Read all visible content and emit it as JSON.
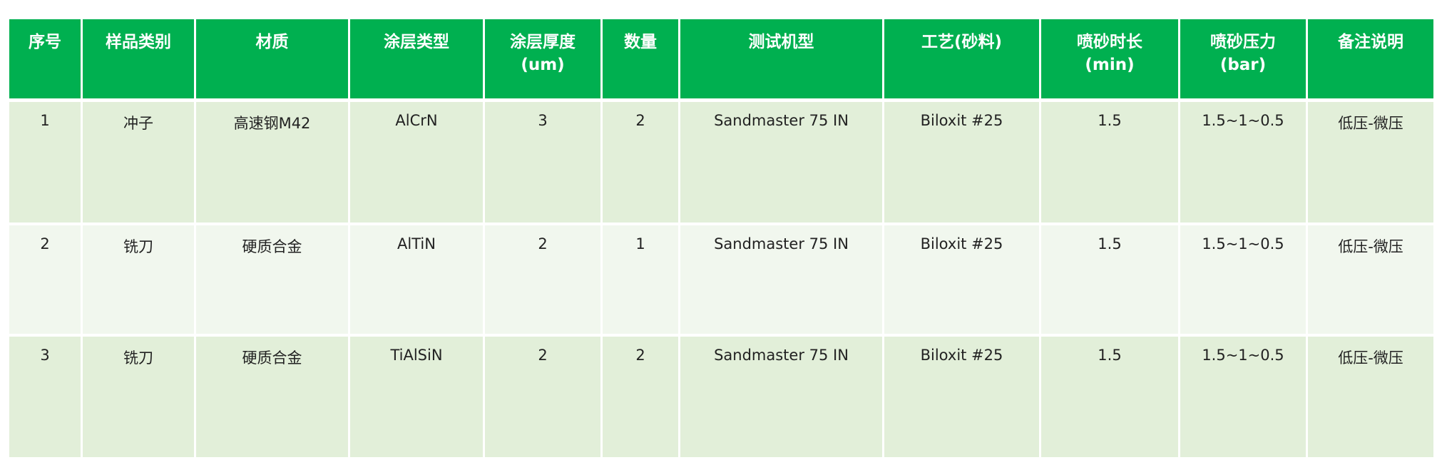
{
  "colors": {
    "header": "#00b050",
    "row_odd": "#e2efd9",
    "row_even": "#f1f7ee"
  },
  "table": {
    "headers": [
      {
        "line1": "序号",
        "line2": ""
      },
      {
        "line1": "样品类别",
        "line2": ""
      },
      {
        "line1": "材质",
        "line2": ""
      },
      {
        "line1": "涂层类型",
        "line2": ""
      },
      {
        "line1": "涂层厚度",
        "line2": "(um)"
      },
      {
        "line1": "数量",
        "line2": ""
      },
      {
        "line1": "测试机型",
        "line2": ""
      },
      {
        "line1": "工艺(砂料)",
        "line2": ""
      },
      {
        "line1": "喷砂时长",
        "line2": "(min)"
      },
      {
        "line1": "喷砂压力",
        "line2": "(bar)"
      },
      {
        "line1": "备注说明",
        "line2": ""
      }
    ],
    "rows": [
      [
        "1",
        "冲子",
        "高速钢M42",
        "AlCrN",
        "3",
        "2",
        "Sandmaster 75 IN",
        "Biloxit #25",
        "1.5",
        "1.5~1~0.5",
        "低压-微压"
      ],
      [
        "2",
        "铣刀",
        "硬质合金",
        "AlTiN",
        "2",
        "1",
        "Sandmaster 75 IN",
        "Biloxit #25",
        "1.5",
        "1.5~1~0.5",
        "低压-微压"
      ],
      [
        "3",
        "铣刀",
        "硬质合金",
        "TiAlSiN",
        "2",
        "2",
        "Sandmaster 75 IN",
        "Biloxit #25",
        "1.5",
        "1.5~1~0.5",
        "低压-微压"
      ]
    ]
  }
}
